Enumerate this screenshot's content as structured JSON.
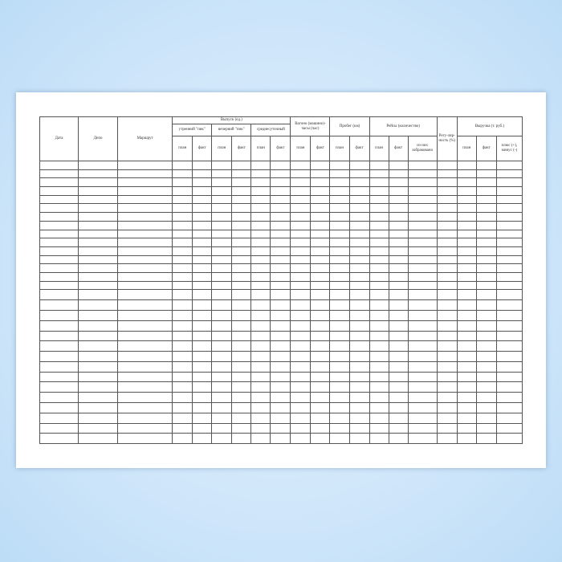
{
  "header": {
    "date": "Дата",
    "depot": "Депо",
    "route": "Маршрут",
    "release": "Выпуск (ед.)",
    "morning_peak": "утренний \"пик\"",
    "evening_peak": "вечерний \"пик\"",
    "daily_avg": "среднесуточный",
    "car_hours": "Вагоно (машино)-часы (час)",
    "mileage": "Пробег (км)",
    "trips": "Рейсы (количество)",
    "regularity": "Регу-ляр-ность (%)",
    "revenue": "Выручка (т. руб.)",
    "plan": "план",
    "fact": "факт",
    "of_which_cancelled": "из них забраковано",
    "plus_minus": "плюс (+), минус (-)"
  }
}
